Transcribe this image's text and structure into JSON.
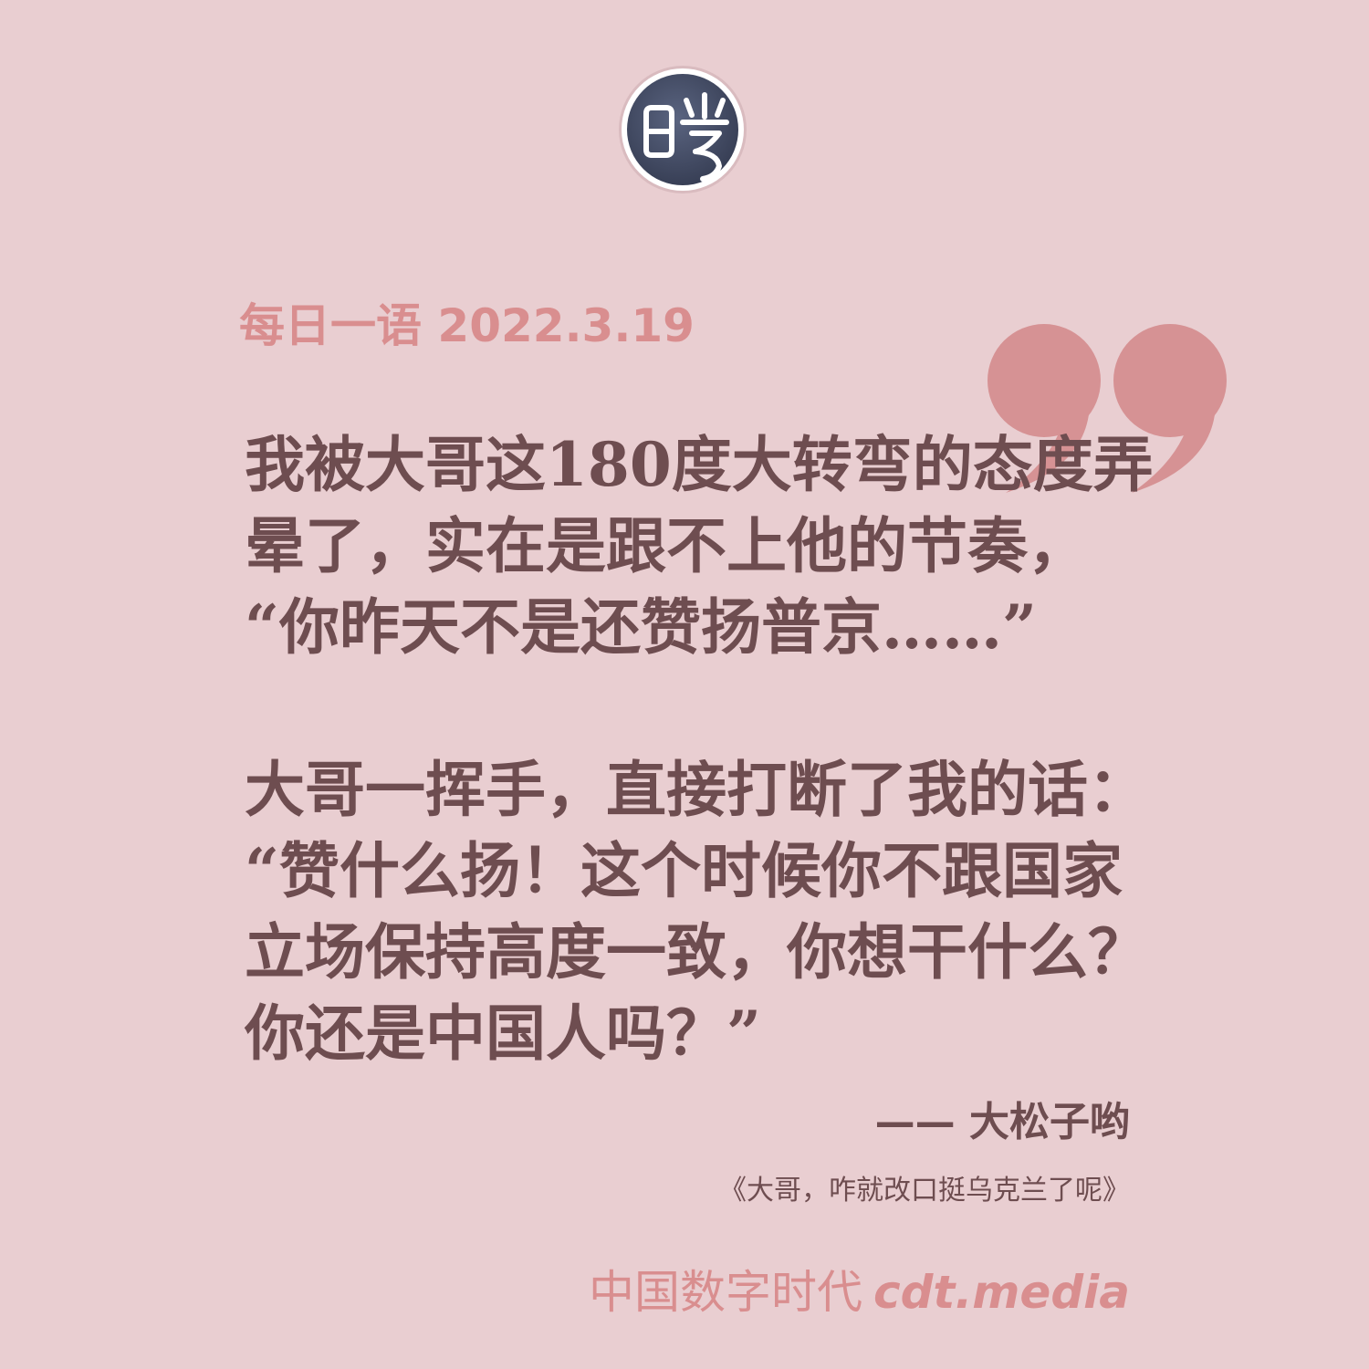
{
  "logo": {
    "icon": "cdt-seal-logo",
    "glyph": "曉",
    "colors": {
      "fill": "#414a63",
      "ring": "#ffffff",
      "glyph": "#ffffff"
    }
  },
  "header": {
    "date_label": "每日一语 2022.3.19"
  },
  "quote": {
    "mark_icon": "closing-quotation-mark-icon",
    "paragraphs": [
      "我被大哥这180度大转弯的态度弄\n晕了，实在是跟不上他的节奏，\n“你昨天不是还赞扬普京……”",
      "大哥一挥手，直接打断了我的话：\n“赞什么扬！这个时候你不跟国家\n立场保持高度一致，你想干什么？\n你还是中国人吗？”"
    ]
  },
  "attribution": {
    "author": "—— 大松子哟",
    "source": "《大哥，咋就改口挺乌克兰了呢》"
  },
  "footer": {
    "brand_name": "中国数字时代",
    "brand_url": "cdt.media"
  },
  "colors": {
    "background": "#e9ced1",
    "accent": "#d98e8f",
    "body_text": "#6e4d50",
    "quote_mark": "#d69294"
  }
}
